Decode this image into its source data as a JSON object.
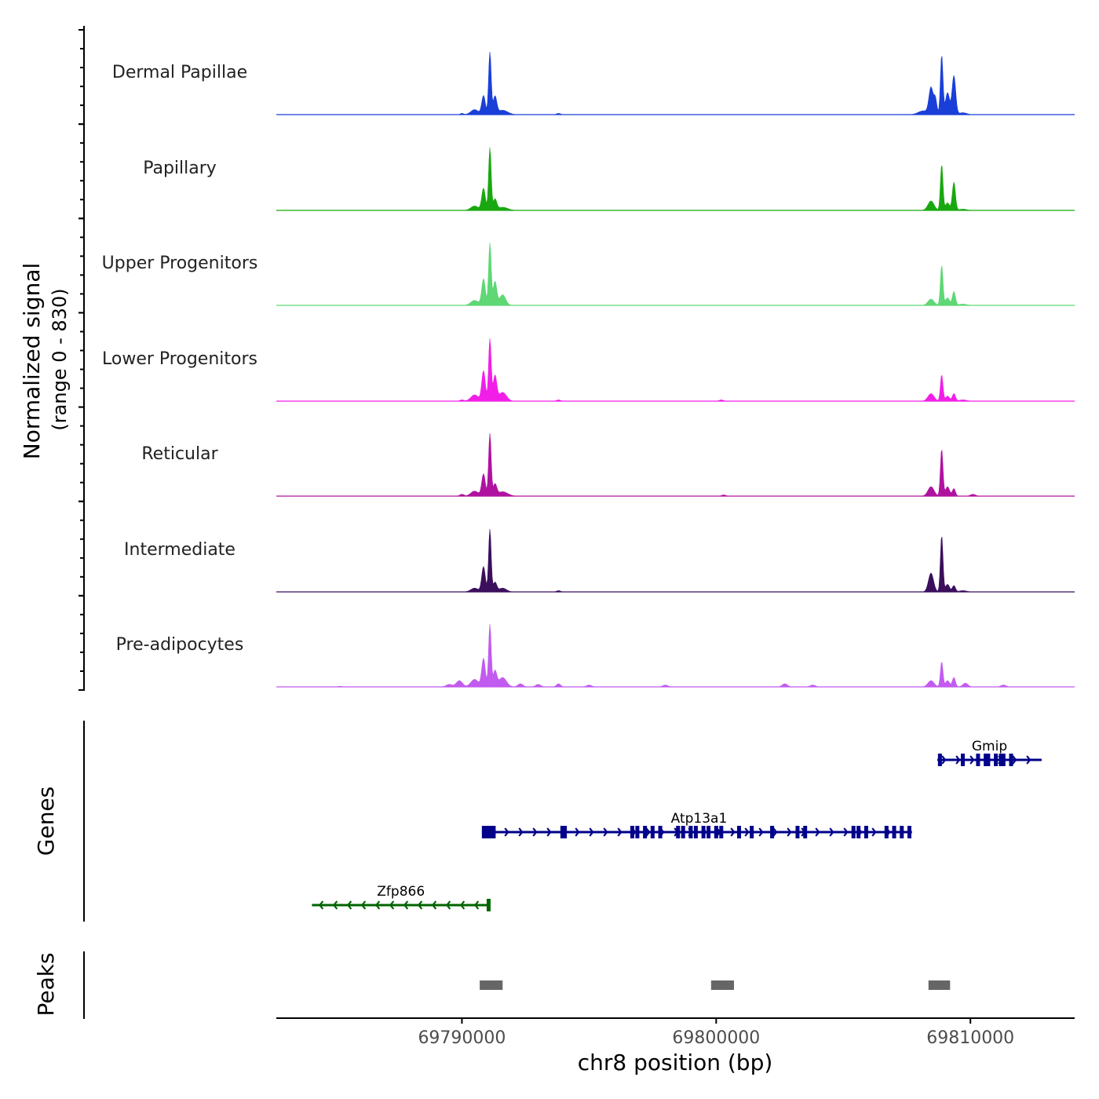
{
  "chart_data": {
    "type": "area",
    "title": "",
    "ylabel_line1": "Normalized signal",
    "ylabel_line2": "(range 0 - 830)",
    "ylim": [
      0,
      830
    ],
    "xlabel": "chr8 position (bp)",
    "xlim": [
      69782700,
      69814100
    ],
    "xticks": [
      69790000,
      69800000,
      69810000
    ],
    "xtick_labels": [
      "69790000",
      "69800000",
      "69810000"
    ],
    "series": [
      {
        "name": "Dermal Papillae",
        "color": "#1a3fd9",
        "peaks": [
          {
            "x": 69790000,
            "h": 0.02,
            "w": 60
          },
          {
            "x": 69790500,
            "h": 0.08,
            "w": 150
          },
          {
            "x": 69790850,
            "h": 0.3,
            "w": 70
          },
          {
            "x": 69791100,
            "h": 1.0,
            "w": 50
          },
          {
            "x": 69791300,
            "h": 0.28,
            "w": 70
          },
          {
            "x": 69791600,
            "h": 0.07,
            "w": 200
          },
          {
            "x": 69793800,
            "h": 0.02,
            "w": 80
          },
          {
            "x": 69808150,
            "h": 0.06,
            "w": 200
          },
          {
            "x": 69808450,
            "h": 0.42,
            "w": 80
          },
          {
            "x": 69808620,
            "h": 0.25,
            "w": 60
          },
          {
            "x": 69808870,
            "h": 0.95,
            "w": 50
          },
          {
            "x": 69809100,
            "h": 0.35,
            "w": 80
          },
          {
            "x": 69809350,
            "h": 0.62,
            "w": 70
          },
          {
            "x": 69809700,
            "h": 0.03,
            "w": 150
          }
        ]
      },
      {
        "name": "Papillary",
        "color": "#19a80f",
        "peaks": [
          {
            "x": 69790500,
            "h": 0.07,
            "w": 150
          },
          {
            "x": 69790850,
            "h": 0.35,
            "w": 70
          },
          {
            "x": 69791100,
            "h": 1.0,
            "w": 50
          },
          {
            "x": 69791300,
            "h": 0.17,
            "w": 70
          },
          {
            "x": 69791600,
            "h": 0.05,
            "w": 200
          },
          {
            "x": 69808450,
            "h": 0.15,
            "w": 120
          },
          {
            "x": 69808870,
            "h": 0.73,
            "w": 50
          },
          {
            "x": 69809100,
            "h": 0.12,
            "w": 80
          },
          {
            "x": 69809350,
            "h": 0.45,
            "w": 60
          },
          {
            "x": 69809700,
            "h": 0.02,
            "w": 150
          }
        ]
      },
      {
        "name": "Upper Progenitors",
        "color": "#5ed774",
        "peaks": [
          {
            "x": 69790500,
            "h": 0.08,
            "w": 150
          },
          {
            "x": 69790850,
            "h": 0.42,
            "w": 70
          },
          {
            "x": 69791100,
            "h": 1.0,
            "w": 50
          },
          {
            "x": 69791300,
            "h": 0.38,
            "w": 70
          },
          {
            "x": 69791600,
            "h": 0.17,
            "w": 120
          },
          {
            "x": 69808450,
            "h": 0.1,
            "w": 120
          },
          {
            "x": 69808870,
            "h": 0.64,
            "w": 50
          },
          {
            "x": 69809100,
            "h": 0.12,
            "w": 80
          },
          {
            "x": 69809350,
            "h": 0.22,
            "w": 60
          },
          {
            "x": 69809700,
            "h": 0.02,
            "w": 150
          }
        ]
      },
      {
        "name": "Lower Progenitors",
        "color": "#f21ee8",
        "peaks": [
          {
            "x": 69790000,
            "h": 0.02,
            "w": 80
          },
          {
            "x": 69790500,
            "h": 0.1,
            "w": 150
          },
          {
            "x": 69790850,
            "h": 0.48,
            "w": 70
          },
          {
            "x": 69791100,
            "h": 1.0,
            "w": 50
          },
          {
            "x": 69791300,
            "h": 0.4,
            "w": 70
          },
          {
            "x": 69791600,
            "h": 0.14,
            "w": 150
          },
          {
            "x": 69793800,
            "h": 0.02,
            "w": 80
          },
          {
            "x": 69800200,
            "h": 0.02,
            "w": 80
          },
          {
            "x": 69808450,
            "h": 0.12,
            "w": 120
          },
          {
            "x": 69808870,
            "h": 0.42,
            "w": 50
          },
          {
            "x": 69809100,
            "h": 0.08,
            "w": 80
          },
          {
            "x": 69809350,
            "h": 0.12,
            "w": 60
          },
          {
            "x": 69809700,
            "h": 0.02,
            "w": 150
          }
        ]
      },
      {
        "name": "Reticular",
        "color": "#b012a0",
        "peaks": [
          {
            "x": 69790000,
            "h": 0.03,
            "w": 80
          },
          {
            "x": 69790500,
            "h": 0.08,
            "w": 150
          },
          {
            "x": 69790850,
            "h": 0.35,
            "w": 70
          },
          {
            "x": 69791100,
            "h": 1.0,
            "w": 50
          },
          {
            "x": 69791300,
            "h": 0.18,
            "w": 70
          },
          {
            "x": 69791600,
            "h": 0.07,
            "w": 200
          },
          {
            "x": 69800300,
            "h": 0.02,
            "w": 80
          },
          {
            "x": 69808450,
            "h": 0.15,
            "w": 120
          },
          {
            "x": 69808870,
            "h": 0.75,
            "w": 50
          },
          {
            "x": 69809100,
            "h": 0.15,
            "w": 80
          },
          {
            "x": 69809350,
            "h": 0.12,
            "w": 60
          },
          {
            "x": 69810100,
            "h": 0.03,
            "w": 100
          }
        ]
      },
      {
        "name": "Intermediate",
        "color": "#3b0f5c",
        "peaks": [
          {
            "x": 69790500,
            "h": 0.06,
            "w": 150
          },
          {
            "x": 69790850,
            "h": 0.4,
            "w": 70
          },
          {
            "x": 69791100,
            "h": 1.0,
            "w": 50
          },
          {
            "x": 69791300,
            "h": 0.15,
            "w": 70
          },
          {
            "x": 69791600,
            "h": 0.06,
            "w": 150
          },
          {
            "x": 69793800,
            "h": 0.02,
            "w": 80
          },
          {
            "x": 69808450,
            "h": 0.3,
            "w": 100
          },
          {
            "x": 69808870,
            "h": 0.9,
            "w": 50
          },
          {
            "x": 69809100,
            "h": 0.12,
            "w": 80
          },
          {
            "x": 69809350,
            "h": 0.1,
            "w": 60
          },
          {
            "x": 69809700,
            "h": 0.02,
            "w": 150
          }
        ]
      },
      {
        "name": "Pre-adipocytes",
        "color": "#c25bef",
        "peaks": [
          {
            "x": 69785200,
            "h": 0.01,
            "w": 80
          },
          {
            "x": 69789500,
            "h": 0.04,
            "w": 120
          },
          {
            "x": 69789900,
            "h": 0.1,
            "w": 120
          },
          {
            "x": 69790500,
            "h": 0.12,
            "w": 150
          },
          {
            "x": 69790850,
            "h": 0.45,
            "w": 70
          },
          {
            "x": 69791100,
            "h": 1.0,
            "w": 50
          },
          {
            "x": 69791300,
            "h": 0.25,
            "w": 70
          },
          {
            "x": 69791600,
            "h": 0.15,
            "w": 150
          },
          {
            "x": 69792300,
            "h": 0.05,
            "w": 100
          },
          {
            "x": 69793000,
            "h": 0.04,
            "w": 100
          },
          {
            "x": 69793800,
            "h": 0.05,
            "w": 80
          },
          {
            "x": 69795000,
            "h": 0.03,
            "w": 100
          },
          {
            "x": 69798000,
            "h": 0.03,
            "w": 100
          },
          {
            "x": 69802700,
            "h": 0.05,
            "w": 100
          },
          {
            "x": 69803800,
            "h": 0.03,
            "w": 100
          },
          {
            "x": 69808450,
            "h": 0.1,
            "w": 120
          },
          {
            "x": 69808870,
            "h": 0.4,
            "w": 50
          },
          {
            "x": 69809100,
            "h": 0.1,
            "w": 80
          },
          {
            "x": 69809350,
            "h": 0.15,
            "w": 60
          },
          {
            "x": 69809800,
            "h": 0.06,
            "w": 100
          },
          {
            "x": 69811300,
            "h": 0.03,
            "w": 100
          }
        ]
      }
    ],
    "genes_label": "Genes",
    "genes": [
      {
        "name": "Gmip",
        "strand": "+",
        "color": "#00008b",
        "start": 69808700,
        "end": 69812800,
        "exons": [
          69808800,
          69809700,
          69810300,
          69810600,
          69810700,
          69811000,
          69811200,
          69811300,
          69811600
        ]
      },
      {
        "name": "Atp13a1",
        "strand": "+",
        "color": "#00008b",
        "start": 69790950,
        "end": 69807700,
        "exons": [
          69791000,
          69791250,
          69793950,
          69794050,
          69796700,
          69796900,
          69797200,
          69797500,
          69797800,
          69798500,
          69798700,
          69799000,
          69799200,
          69799500,
          69799700,
          69800000,
          69800200,
          69800900,
          69801400,
          69802200,
          69803200,
          69803500,
          69805400,
          69805600,
          69805900,
          69806700,
          69807000,
          69807300,
          69807600
        ]
      },
      {
        "name": "Zfp866",
        "strand": "-",
        "color": "#006400",
        "start": 69784100,
        "end": 69791100,
        "exons": [
          69791050
        ]
      }
    ],
    "peaks_label": "Peaks",
    "peak_regions": [
      {
        "start": 69790700,
        "end": 69791600
      },
      {
        "start": 69799800,
        "end": 69800700
      },
      {
        "start": 69808350,
        "end": 69809200
      }
    ]
  }
}
